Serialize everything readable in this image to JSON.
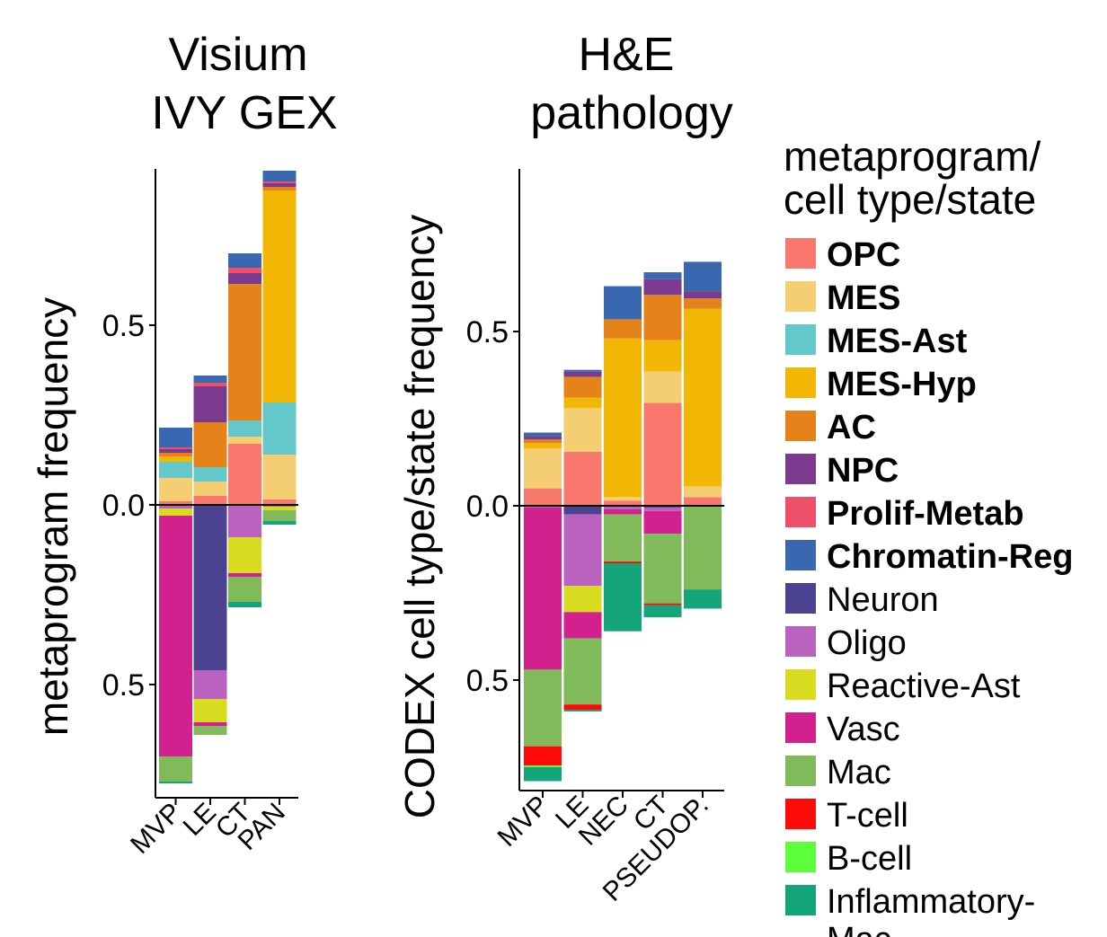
{
  "chart_data": [
    {
      "type": "bar",
      "stacked": "diverging",
      "title": [
        "Visium",
        "IVY GEX"
      ],
      "ylabel": "metaprogram frequency",
      "yticks": [
        {
          "value": 0.5,
          "label": "0.5"
        },
        {
          "value": 0.0,
          "label": "0.0"
        },
        {
          "value": -0.5,
          "label": "0.5"
        }
      ],
      "ylim": [
        -0.79,
        0.93
      ],
      "categories": [
        "MVP",
        "LE",
        "CT",
        "PAN"
      ],
      "positive_order": [
        "OPC",
        "MES",
        "MES-Ast",
        "MES-Hyp",
        "AC",
        "NPC",
        "Prolif-Metab",
        "Chromatin-Reg"
      ],
      "negative_order": [
        "Neuron",
        "Oligo",
        "Reactive-Ast",
        "Vasc",
        "Mac",
        "T-cell",
        "B-cell",
        "Inflammatory-Mac"
      ],
      "series": [
        {
          "name": "OPC",
          "values": [
            0.01,
            0.025,
            0.17,
            0.015
          ]
        },
        {
          "name": "MES",
          "values": [
            0.065,
            0.04,
            0.02,
            0.125
          ]
        },
        {
          "name": "MES-Ast",
          "values": [
            0.045,
            0.04,
            0.045,
            0.145
          ]
        },
        {
          "name": "MES-Hyp",
          "values": [
            0.015,
            0.0,
            0.0,
            0.59
          ]
        },
        {
          "name": "AC",
          "values": [
            0.01,
            0.125,
            0.38,
            0.01
          ]
        },
        {
          "name": "NPC",
          "values": [
            0.01,
            0.1,
            0.03,
            0.01
          ]
        },
        {
          "name": "Prolif-Metab",
          "values": [
            0.005,
            0.01,
            0.015,
            0.005
          ]
        },
        {
          "name": "Chromatin-Reg",
          "values": [
            0.055,
            0.02,
            0.04,
            0.03
          ]
        },
        {
          "name": "Neuron",
          "values": [
            0.0,
            0.46,
            0.0,
            0.0
          ]
        },
        {
          "name": "Oligo",
          "values": [
            0.01,
            0.08,
            0.09,
            0.005
          ]
        },
        {
          "name": "Reactive-Ast",
          "values": [
            0.02,
            0.065,
            0.1,
            0.01
          ]
        },
        {
          "name": "Vasc",
          "values": [
            0.67,
            0.01,
            0.01,
            0.0
          ]
        },
        {
          "name": "Mac",
          "values": [
            0.07,
            0.025,
            0.07,
            0.03
          ]
        },
        {
          "name": "T-cell",
          "values": [
            0.0,
            0.0,
            0.0,
            0.0
          ]
        },
        {
          "name": "B-cell",
          "values": [
            0.0,
            0.0,
            0.0,
            0.0
          ]
        },
        {
          "name": "Inflammatory-Mac",
          "values": [
            0.005,
            0.0,
            0.015,
            0.01
          ]
        }
      ]
    },
    {
      "type": "bar",
      "stacked": "diverging",
      "title": [
        "H&E",
        "pathology"
      ],
      "ylabel": "CODEX cell type/state frequency",
      "yticks": [
        {
          "value": 0.5,
          "label": "0.5"
        },
        {
          "value": 0.0,
          "label": "0.0"
        },
        {
          "value": -0.5,
          "label": "0.5"
        }
      ],
      "ylim": [
        -0.8,
        0.97
      ],
      "categories": [
        "MVP",
        "LE",
        "NEC",
        "CT",
        "PSEUDOP."
      ],
      "positive_order": [
        "OPC",
        "MES",
        "MES-Ast",
        "MES-Hyp",
        "AC",
        "NPC",
        "Prolif-Metab",
        "Chromatin-Reg"
      ],
      "negative_order": [
        "Neuron",
        "Oligo",
        "Reactive-Ast",
        "Vasc",
        "Mac",
        "T-cell",
        "B-cell",
        "Inflammatory-Mac"
      ],
      "series": [
        {
          "name": "OPC",
          "values": [
            0.05,
            0.155,
            0.015,
            0.295,
            0.025
          ]
        },
        {
          "name": "MES",
          "values": [
            0.115,
            0.125,
            0.01,
            0.09,
            0.03
          ]
        },
        {
          "name": "MES-Ast",
          "values": [
            0.0,
            0.0,
            0.0,
            0.0,
            0.0
          ]
        },
        {
          "name": "MES-Hyp",
          "values": [
            0.015,
            0.03,
            0.455,
            0.09,
            0.51
          ]
        },
        {
          "name": "AC",
          "values": [
            0.01,
            0.06,
            0.055,
            0.13,
            0.03
          ]
        },
        {
          "name": "NPC",
          "values": [
            0.01,
            0.015,
            0.0,
            0.045,
            0.02
          ]
        },
        {
          "name": "Prolif-Metab",
          "values": [
            0.0,
            0.0,
            0.0,
            0.0,
            0.0
          ]
        },
        {
          "name": "Chromatin-Reg",
          "values": [
            0.01,
            0.005,
            0.095,
            0.02,
            0.085
          ]
        },
        {
          "name": "Neuron",
          "values": [
            0.0,
            0.025,
            0.0,
            0.005,
            0.0
          ]
        },
        {
          "name": "Oligo",
          "values": [
            0.005,
            0.205,
            0.01,
            0.01,
            0.0
          ]
        },
        {
          "name": "Reactive-Ast",
          "values": [
            0.0,
            0.075,
            0.0,
            0.0,
            0.0
          ]
        },
        {
          "name": "Vasc",
          "values": [
            0.465,
            0.075,
            0.015,
            0.065,
            0.0
          ]
        },
        {
          "name": "Mac",
          "values": [
            0.22,
            0.19,
            0.135,
            0.2,
            0.24
          ]
        },
        {
          "name": "T-cell",
          "values": [
            0.055,
            0.015,
            0.005,
            0.005,
            0.0
          ]
        },
        {
          "name": "B-cell",
          "values": [
            0.005,
            0.0,
            0.0,
            0.0,
            0.0
          ]
        },
        {
          "name": "Inflammatory-Mac",
          "values": [
            0.04,
            0.005,
            0.195,
            0.035,
            0.055
          ]
        }
      ]
    }
  ],
  "legend": {
    "title": [
      "metaprogram/",
      "cell type/state"
    ],
    "items": [
      {
        "name": "OPC",
        "color": "#F8786D",
        "bold": true
      },
      {
        "name": "MES",
        "color": "#F5CE73",
        "bold": true
      },
      {
        "name": "MES-Ast",
        "color": "#64C7CA",
        "bold": true
      },
      {
        "name": "MES-Hyp",
        "color": "#F2B705",
        "bold": true
      },
      {
        "name": "AC",
        "color": "#E5831A",
        "bold": true
      },
      {
        "name": "NPC",
        "color": "#7B3A8E",
        "bold": true
      },
      {
        "name": "Prolif-Metab",
        "color": "#EE4F6A",
        "bold": true
      },
      {
        "name": "Chromatin-Reg",
        "color": "#3A68B0",
        "bold": true
      },
      {
        "name": "Neuron",
        "color": "#4B4390",
        "bold": false
      },
      {
        "name": "Oligo",
        "color": "#B962BF",
        "bold": false
      },
      {
        "name": "Reactive-Ast",
        "color": "#D8DB1F",
        "bold": false
      },
      {
        "name": "Vasc",
        "color": "#D2218F",
        "bold": false
      },
      {
        "name": "Mac",
        "color": "#80BA5A",
        "bold": false
      },
      {
        "name": "T-cell",
        "color": "#FF0A0A",
        "bold": false
      },
      {
        "name": "B-cell",
        "color": "#5CFF3A",
        "bold": false
      },
      {
        "name": "Inflammatory-Mac",
        "label_lines": [
          "Inflammatory-",
          "Mac"
        ],
        "color": "#14A57A",
        "bold": false
      }
    ]
  }
}
